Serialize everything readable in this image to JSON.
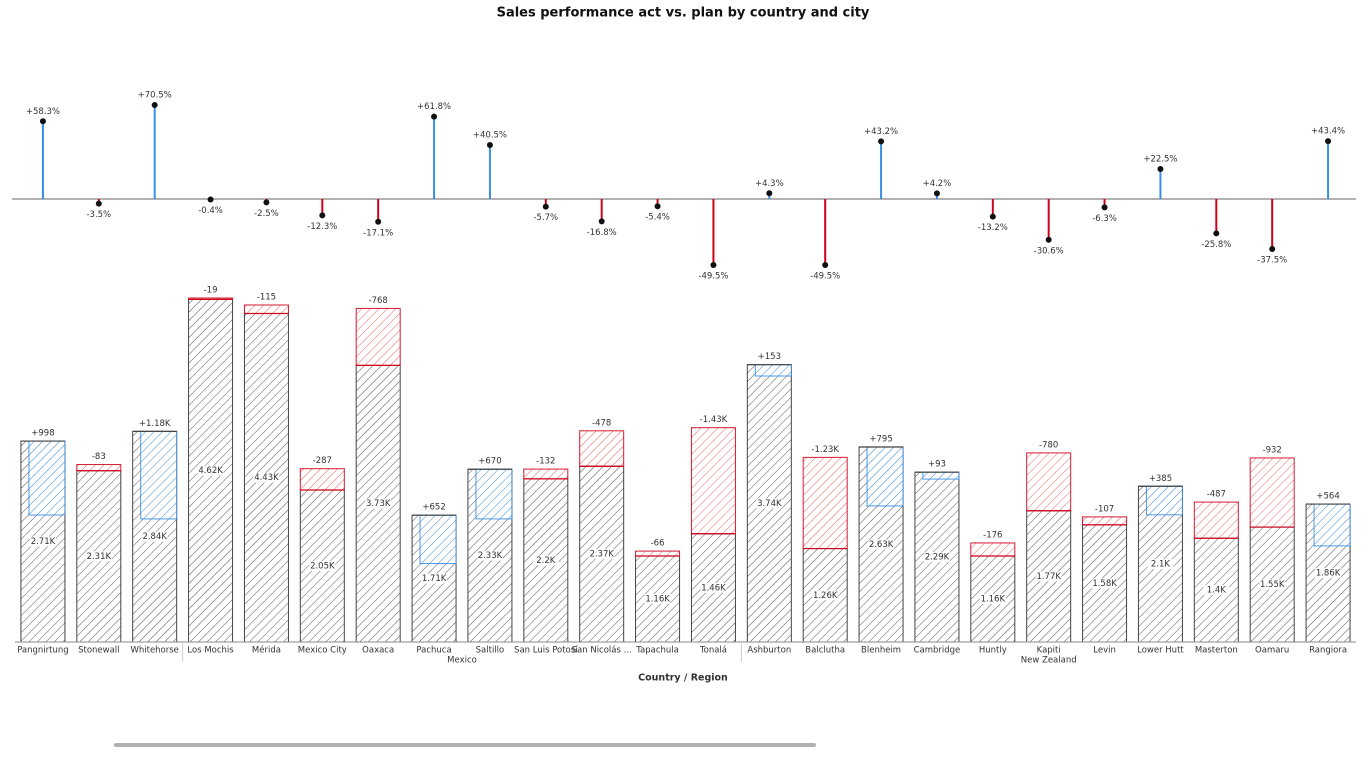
{
  "chart_data": {
    "type": "variance-bar",
    "title": "Sales performance act vs. plan by country and city",
    "x_label": "Country / Region",
    "groups": [
      {
        "name": null,
        "cities": [
          "Pangnirtung",
          "Stonewall",
          "Whitehorse"
        ]
      },
      {
        "name": "Mexico",
        "cities": [
          "Los Mochis",
          "Mérida",
          "Mexico City",
          "Oaxaca",
          "Pachuca",
          "Saltillo",
          "San Luis Potosí",
          "San Nicolás ...",
          "Tapachula",
          "Tonalá"
        ]
      },
      {
        "name": "New Zealand",
        "cities": [
          "Ashburton",
          "Balclutha",
          "Blenheim",
          "Cambridge",
          "Huntly",
          "Kapiti",
          "Levin",
          "Lower Hutt",
          "Masterton",
          "Oamaru",
          "Rangiora"
        ]
      }
    ],
    "variance_pct": {
      "values": [
        58.3,
        -3.5,
        70.5,
        -0.4,
        -2.5,
        -12.3,
        -17.1,
        61.8,
        40.5,
        -5.7,
        -16.8,
        -5.4,
        -49.5,
        4.3,
        -49.5,
        43.2,
        4.2,
        -13.2,
        -30.6,
        -6.3,
        22.5,
        -25.8,
        -37.5,
        43.4
      ],
      "value_labels": [
        "+58.3%",
        "-3.5%",
        "+70.5%",
        "-0.4%",
        "-2.5%",
        "-12.3%",
        "-17.1%",
        "+61.8%",
        "+40.5%",
        "-5.7%",
        "-16.8%",
        "-5.4%",
        "-49.5%",
        "+4.3%",
        "-49.5%",
        "+43.2%",
        "+4.2%",
        "-13.2%",
        "-30.6%",
        "-6.3%",
        "+22.5%",
        "-25.8%",
        "-37.5%",
        "+43.4%"
      ]
    },
    "actual": {
      "values": [
        2710,
        2310,
        2840,
        4620,
        4430,
        2050,
        3730,
        1710,
        2330,
        2200,
        2370,
        1160,
        1460,
        3740,
        1260,
        2630,
        2290,
        1160,
        1770,
        1580,
        2100,
        1400,
        1550,
        1860
      ],
      "value_labels": [
        "2.71K",
        "2.31K",
        "2.84K",
        "4.62K",
        "4.43K",
        "2.05K",
        "3.73K",
        "1.71K",
        "2.33K",
        "2.2K",
        "2.37K",
        "1.16K",
        "1.46K",
        "3.74K",
        "1.26K",
        "2.63K",
        "2.29K",
        "1.16K",
        "1.77K",
        "1.58K",
        "2.1K",
        "1.4K",
        "1.55K",
        "1.86K"
      ]
    },
    "variance": {
      "values": [
        998,
        -83,
        1180,
        -19,
        -115,
        -287,
        -768,
        652,
        670,
        -132,
        -478,
        -66,
        -1430,
        153,
        -1230,
        795,
        93,
        -176,
        -780,
        -107,
        385,
        -487,
        -932,
        564
      ],
      "value_labels": [
        "+998",
        "-83",
        "+1.18K",
        "-19",
        "-115",
        "-287",
        "-768",
        "+652",
        "+670",
        "-132",
        "-478",
        "-66",
        "-1.43K",
        "+153",
        "-1.23K",
        "+795",
        "+93",
        "-176",
        "-780",
        "-107",
        "+385",
        "-487",
        "-932",
        "+564"
      ]
    },
    "positive_color": "#3a8ee6",
    "negative_color": "#d0021b",
    "actual_color": "#444444"
  }
}
